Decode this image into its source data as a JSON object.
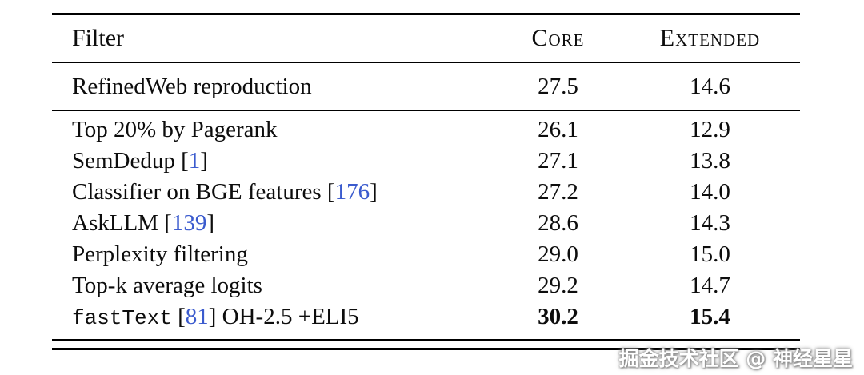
{
  "page": {
    "background": "#ffffff"
  },
  "colors": {
    "text": "#0d0d0d",
    "citation_link": "#3b5bce",
    "rule": "#000000"
  },
  "table": {
    "headers": {
      "filter": "Filter",
      "core": "Core",
      "extended": "Extended"
    },
    "baseline": {
      "label": "RefinedWeb reproduction",
      "core": "27.5",
      "extended": "14.6"
    },
    "rows": [
      {
        "pre": "Top 20% by Pagerank",
        "core": "26.1",
        "extended": "12.9"
      },
      {
        "pre": "SemDedup ",
        "cite": "1",
        "post": "",
        "core": "27.1",
        "extended": "13.8"
      },
      {
        "pre": "Classifier on BGE features ",
        "cite": "176",
        "post": "",
        "core": "27.2",
        "extended": "14.0"
      },
      {
        "pre": "AskLLM ",
        "cite": "139",
        "post": "",
        "core": "28.6",
        "extended": "14.3"
      },
      {
        "pre": "Perplexity filtering",
        "core": "29.0",
        "extended": "15.0"
      },
      {
        "pre": "Top-k average logits",
        "core": "29.2",
        "extended": "14.7"
      },
      {
        "mono": "fastText",
        "pre": " ",
        "cite": "81",
        "post": " OH-2.5 +ELI5",
        "core": "30.2",
        "extended": "15.4",
        "bold_values": true
      }
    ]
  },
  "watermark": "掘金技术社区 @ 神经星星"
}
